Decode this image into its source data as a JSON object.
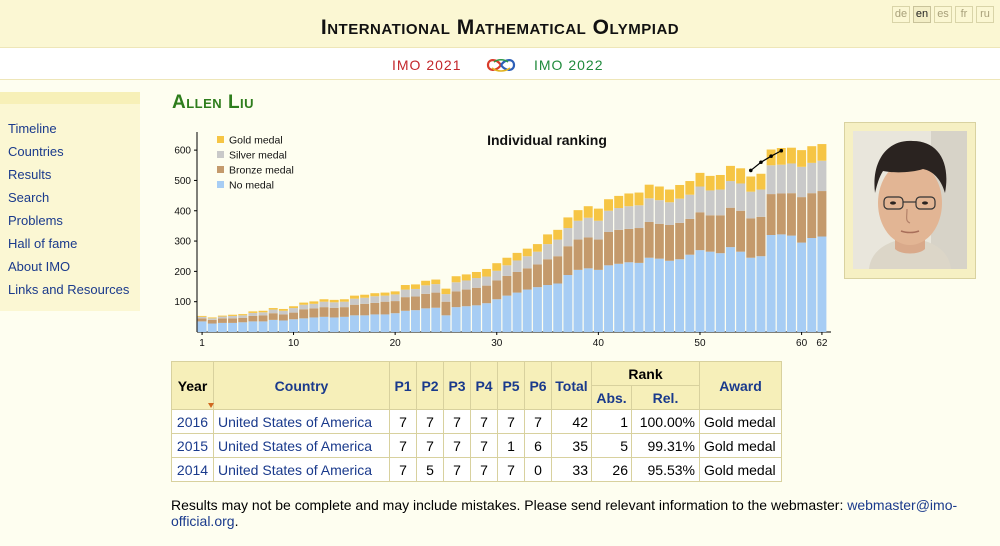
{
  "site": {
    "title": "International Mathematical Olympiad",
    "languages": [
      {
        "code": "de",
        "active": false
      },
      {
        "code": "en",
        "active": true
      },
      {
        "code": "es",
        "active": false
      },
      {
        "code": "fr",
        "active": false
      },
      {
        "code": "ru",
        "active": false
      }
    ],
    "prev_imo": "IMO 2021",
    "next_imo": "IMO 2022"
  },
  "sidebar": {
    "items": [
      {
        "label": "Timeline"
      },
      {
        "label": "Countries"
      },
      {
        "label": "Results"
      },
      {
        "label": "Search"
      },
      {
        "label": "Problems"
      },
      {
        "label": "Hall of fame"
      },
      {
        "label": "About IMO"
      },
      {
        "label": "Links and Resources"
      }
    ]
  },
  "person": {
    "name": "Allen Liu"
  },
  "chart_data": {
    "type": "bar",
    "title": "Individual ranking",
    "x_ticks": [
      1,
      10,
      20,
      30,
      40,
      50,
      60,
      62
    ],
    "y_ticks": [
      100,
      200,
      300,
      400,
      500,
      600
    ],
    "ylim": [
      0,
      640
    ],
    "legend_position": "top-left",
    "legend": [
      "Gold medal",
      "Silver medal",
      "Bronze medal",
      "No medal"
    ],
    "colors": {
      "gold": "#f6c544",
      "silver": "#c9c9c9",
      "bronze": "#c49a6c",
      "none": "#a7cdf4",
      "line": "#000000"
    },
    "x": [
      1,
      2,
      3,
      4,
      5,
      6,
      7,
      8,
      9,
      10,
      11,
      12,
      13,
      14,
      15,
      16,
      17,
      18,
      19,
      20,
      21,
      22,
      23,
      24,
      25,
      26,
      27,
      28,
      29,
      30,
      31,
      32,
      33,
      34,
      35,
      36,
      37,
      38,
      39,
      40,
      41,
      42,
      43,
      44,
      45,
      46,
      47,
      48,
      49,
      50,
      51,
      52,
      53,
      54,
      55,
      56,
      57,
      58,
      59,
      60,
      61,
      62
    ],
    "series": [
      {
        "name": "No medal",
        "values": [
          35,
          28,
          30,
          30,
          32,
          35,
          35,
          40,
          38,
          42,
          45,
          48,
          50,
          48,
          50,
          55,
          55,
          58,
          58,
          62,
          70,
          72,
          78,
          80,
          55,
          82,
          85,
          88,
          95,
          108,
          120,
          130,
          140,
          148,
          155,
          160,
          188,
          205,
          210,
          205,
          220,
          225,
          230,
          228,
          245,
          242,
          235,
          240,
          255,
          270,
          265,
          260,
          280,
          265,
          245,
          250,
          320,
          322,
          318,
          295,
          310,
          315
        ]
      },
      {
        "name": "Bronze medal",
        "values": [
          10,
          12,
          15,
          15,
          15,
          18,
          20,
          22,
          20,
          22,
          30,
          30,
          32,
          32,
          32,
          35,
          38,
          38,
          42,
          40,
          45,
          45,
          48,
          50,
          45,
          52,
          55,
          58,
          58,
          62,
          65,
          68,
          70,
          75,
          85,
          90,
          95,
          100,
          102,
          100,
          110,
          112,
          110,
          115,
          118,
          115,
          118,
          120,
          118,
          125,
          120,
          125,
          130,
          135,
          130,
          130,
          135,
          135,
          140,
          150,
          148,
          150
        ]
      },
      {
        "name": "Silver medal",
        "values": [
          5,
          5,
          6,
          8,
          8,
          10,
          10,
          12,
          12,
          15,
          15,
          15,
          18,
          18,
          18,
          20,
          20,
          22,
          20,
          22,
          25,
          25,
          28,
          28,
          25,
          30,
          30,
          32,
          30,
          32,
          35,
          38,
          40,
          42,
          50,
          55,
          60,
          62,
          65,
          62,
          70,
          72,
          75,
          75,
          78,
          78,
          75,
          80,
          80,
          85,
          82,
          85,
          88,
          90,
          88,
          90,
          95,
          95,
          98,
          100,
          100,
          100
        ]
      },
      {
        "name": "Gold medal",
        "values": [
          3,
          3,
          3,
          4,
          4,
          5,
          5,
          5,
          6,
          6,
          7,
          8,
          8,
          8,
          8,
          10,
          10,
          10,
          10,
          10,
          15,
          15,
          15,
          15,
          18,
          20,
          20,
          20,
          25,
          25,
          25,
          25,
          25,
          25,
          32,
          32,
          35,
          35,
          38,
          40,
          38,
          40,
          42,
          42,
          45,
          45,
          42,
          45,
          45,
          45,
          48,
          48,
          50,
          50,
          50,
          52,
          52,
          55,
          52,
          55,
          55,
          55
        ]
      },
      {
        "name": "Allen Liu rank line",
        "values": [
          null,
          null,
          null,
          null,
          null,
          null,
          null,
          null,
          null,
          null,
          null,
          null,
          null,
          null,
          null,
          null,
          null,
          null,
          null,
          null,
          null,
          null,
          null,
          null,
          null,
          null,
          null,
          null,
          null,
          null,
          null,
          null,
          null,
          null,
          null,
          null,
          null,
          null,
          null,
          null,
          null,
          null,
          null,
          null,
          null,
          null,
          null,
          null,
          null,
          null,
          null,
          null,
          null,
          null,
          533,
          560,
          580,
          598,
          null,
          null,
          null,
          null
        ]
      }
    ]
  },
  "results_table": {
    "headers": {
      "year": "Year",
      "country": "Country",
      "p1": "P1",
      "p2": "P2",
      "p3": "P3",
      "p4": "P4",
      "p5": "P5",
      "p6": "P6",
      "total": "Total",
      "rank": "Rank",
      "abs": "Abs.",
      "rel": "Rel.",
      "award": "Award"
    },
    "rows": [
      {
        "year": "2016",
        "country": "United States of America",
        "p1": "7",
        "p2": "7",
        "p3": "7",
        "p4": "7",
        "p5": "7",
        "p6": "7",
        "total": "42",
        "abs": "1",
        "rel": "100.00%",
        "award": "Gold medal"
      },
      {
        "year": "2015",
        "country": "United States of America",
        "p1": "7",
        "p2": "7",
        "p3": "7",
        "p4": "7",
        "p5": "1",
        "p6": "6",
        "total": "35",
        "abs": "5",
        "rel": "99.31%",
        "award": "Gold medal"
      },
      {
        "year": "2014",
        "country": "United States of America",
        "p1": "7",
        "p2": "5",
        "p3": "7",
        "p4": "7",
        "p5": "7",
        "p6": "0",
        "total": "33",
        "abs": "26",
        "rel": "95.53%",
        "award": "Gold medal"
      }
    ]
  },
  "footer": {
    "note": "Results may not be complete and may include mistakes. Please send relevant information to the webmaster:",
    "email": "webmaster@imo-official.org",
    "after_email": "."
  }
}
